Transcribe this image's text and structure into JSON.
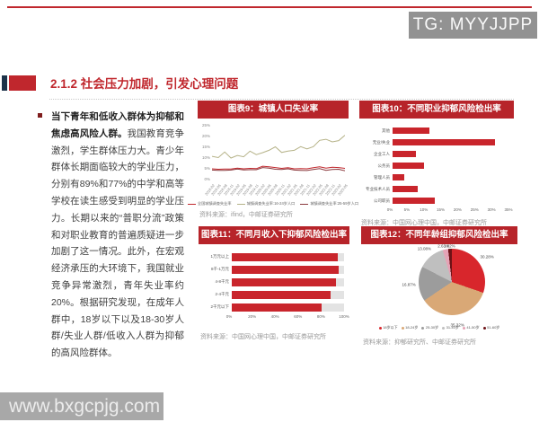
{
  "header": {
    "watermark_tg": "TG: MYYJJPP",
    "section_title": "2.1.2 社会压力加剧，引发心理问题"
  },
  "left_text": {
    "bold": "当下青年和低收入群体为抑郁和焦虑高风险人群。",
    "body": "我国教育竞争激烈，学生群体压力大。青少年群体长期面临较大的学业压力，分别有89%和77%的中学和高等学校在读生感受到明显的学业压力。长期以来的“普职分流”政策和对职业教育的普遍质疑进一步加剧了这一情况。此外，在宏观经济承压的大环境下，我国就业竞争异常激烈，青年失业率约20%。根据研究发现，在成年人群中，18岁以下以及18-30岁人群/失业人群/低收入人群为抑郁的高风险群体。"
  },
  "footer": {
    "watermark_url": "www.bxgcpjg.com"
  },
  "colors": {
    "accent_red": "#c0272d",
    "chart_bar_red": "#c9252c",
    "title_bar_red": "#b7242a"
  },
  "chart_data": [
    {
      "type": "line",
      "title": "图表9：城镇人口失业率",
      "x": [
        "2018-02",
        "2018-05",
        "2018-08",
        "2018-11",
        "2019-02",
        "2019-05",
        "2019-08",
        "2019-11",
        "2020-02",
        "2020-05",
        "2020-08",
        "2020-11",
        "2021-02",
        "2021-05",
        "2021-08",
        "2021-11",
        "2022-02",
        "2022-05",
        "2022-08",
        "2022-11",
        "2023-02",
        "2023-05"
      ],
      "series": [
        {
          "name": "全国城镇调查失业率",
          "color": "#c0272d",
          "values": [
            5.0,
            4.8,
            4.9,
            4.9,
            5.3,
            5.0,
            5.2,
            5.1,
            6.2,
            5.9,
            5.6,
            5.2,
            5.5,
            5.0,
            5.1,
            5.0,
            5.5,
            5.9,
            5.3,
            5.7,
            5.6,
            5.2
          ]
        },
        {
          "name": "城镇调查失业率:16-24岁人口",
          "color": "#b5b287",
          "values": [
            10.8,
            10.2,
            12.8,
            10.0,
            11.2,
            10.6,
            13.2,
            11.6,
            12.5,
            13.6,
            15.2,
            12.6,
            13.2,
            13.6,
            15.3,
            14.2,
            15.3,
            18.2,
            18.7,
            17.5,
            18.1,
            20.6
          ]
        },
        {
          "name": "城镇调查失业率:25-59岁人口",
          "color": "#8b3a3e",
          "values": [
            4.4,
            4.3,
            4.3,
            4.4,
            4.9,
            4.5,
            4.6,
            4.6,
            5.6,
            5.3,
            4.8,
            4.7,
            5.0,
            4.4,
            4.3,
            4.2,
            4.7,
            5.1,
            4.3,
            4.7,
            4.8,
            4.1
          ]
        }
      ],
      "ylim": [
        0,
        25
      ],
      "yticks": [
        "0%",
        "5%",
        "10%",
        "15%",
        "20%",
        "25%"
      ],
      "legend_position": "bottom",
      "grid": false,
      "source": "资料来源：ifind，中邮证券研究所"
    },
    {
      "type": "bar",
      "title": "图表10：不同职业抑郁风险检出率",
      "categories": [
        "其他",
        "无业/失业",
        "企业工人",
        "公务员",
        "管理人员",
        "专业技术人员",
        "公司职员"
      ],
      "values": [
        11.2,
        30.9,
        7.0,
        9.5,
        3.4,
        7.6,
        12.8
      ],
      "xlim": [
        0,
        35
      ],
      "xticks": [
        "0%",
        "5%",
        "10%",
        "15%",
        "20%",
        "25%",
        "30%",
        "35%"
      ],
      "grid": true,
      "track": false,
      "source": "资料来源：中国网心理中国，中邮证券研究所"
    },
    {
      "type": "bar",
      "title": "图表11：不同月收入下抑郁风险检出率",
      "categories": [
        "1万元以上",
        "8千-1万元",
        "4-8千元",
        "2-4千元",
        "2千元以下"
      ],
      "values": [
        94,
        95,
        93,
        88,
        80
      ],
      "xlim": [
        0,
        100
      ],
      "xticks": [
        "0%",
        "20%",
        "40%",
        "60%",
        "80%",
        "100%"
      ],
      "grid": false,
      "track": true,
      "source": "资料来源：中国网心理中国，中邮证券研究所"
    },
    {
      "type": "pie",
      "title": "图表12：不同年龄组抑郁风险检出率",
      "slices": [
        {
          "label": "18岁以下",
          "value": 30.28,
          "color": "#d8262c"
        },
        {
          "label": "18-24岁",
          "value": 35.32,
          "color": "#d9a876"
        },
        {
          "label": "25-30岁",
          "value": 16.87,
          "color": "#9c9c9c"
        },
        {
          "label": "31-40岁",
          "value": 13.08,
          "color": "#bfbfbf"
        },
        {
          "label": "41-50岁",
          "value": 2.63,
          "color": "#e5a3b6"
        },
        {
          "label": "51-60岁",
          "value": 1.82,
          "color": "#6d1216"
        }
      ],
      "legend_position": "bottom",
      "source": "资料来源：抑郁研究所、中邮证券研究所"
    }
  ]
}
